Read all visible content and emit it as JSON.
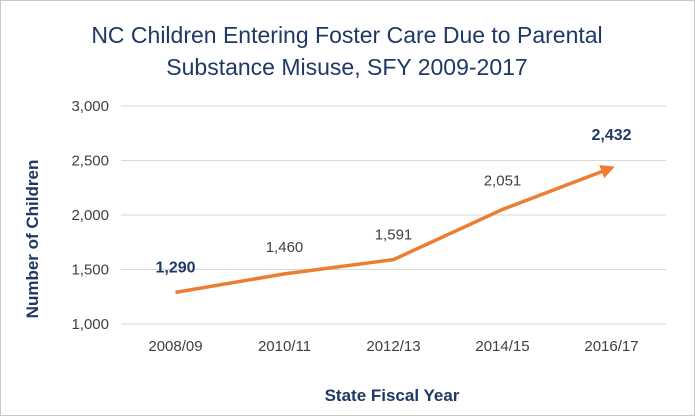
{
  "chart_data": {
    "type": "line",
    "title": "NC Children Entering Foster Care Due to Parental",
    "title_line2": "Substance Misuse, SFY 2009-2017",
    "xlabel": "State Fiscal Year",
    "ylabel": "Number of Children",
    "categories": [
      "2008/09",
      "2010/11",
      "2012/13",
      "2014/15",
      "2016/17"
    ],
    "series": [
      {
        "name": "Children entering foster care",
        "values": [
          1290,
          1460,
          1591,
          2051,
          2432
        ]
      }
    ],
    "data_labels": [
      "1,290",
      "1,460",
      "1,591",
      "2,051",
      "2,432"
    ],
    "emphasized_labels": [
      true,
      false,
      false,
      false,
      true
    ],
    "ylim": [
      1000,
      3000
    ],
    "yticks": [
      1000,
      1500,
      2000,
      2500,
      3000
    ],
    "ytick_labels": [
      "1,000",
      "1,500",
      "2,000",
      "2,500",
      "3,000"
    ],
    "grid": true,
    "line_color": "#ed7d31",
    "gridline_color": "#d9d9d9",
    "title_color": "#1f3864"
  }
}
